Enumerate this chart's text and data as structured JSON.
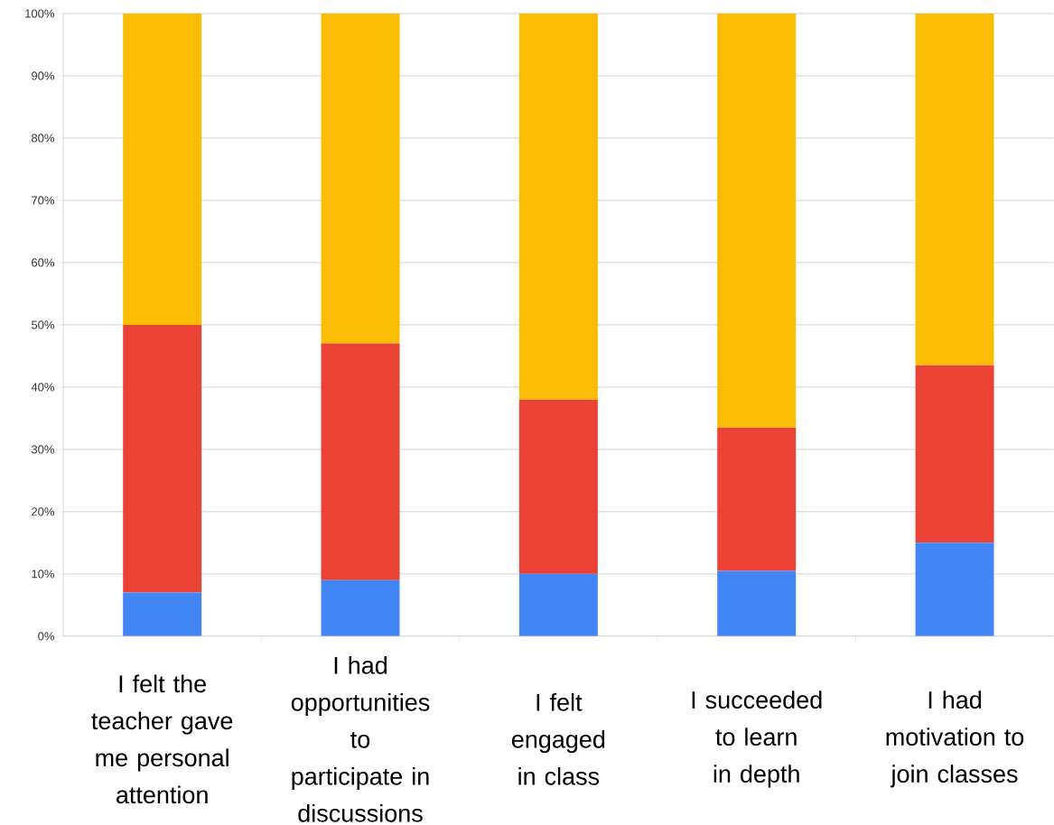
{
  "chart_data": {
    "type": "bar",
    "stacked": true,
    "categories": [
      "I felt the teacher gave me personal attention",
      "I had opportunities to participate in discussions",
      "I felt engaged in class",
      "I succeeded to learn in depth",
      "I had motivation to join classes"
    ],
    "series": [
      {
        "color": "#4285f4",
        "values": [
          7,
          9,
          10,
          10.5,
          15
        ]
      },
      {
        "color": "#ea4335",
        "values": [
          43,
          38,
          28,
          23,
          28.5
        ]
      },
      {
        "color": "#fbbc04",
        "values": [
          50,
          53,
          62,
          66.5,
          56.5
        ]
      }
    ],
    "ylim": [
      0,
      100
    ],
    "yticks": [
      {
        "value": 0,
        "label": "0%"
      },
      {
        "value": 10,
        "label": "10%"
      },
      {
        "value": 20,
        "label": "20%"
      },
      {
        "value": 30,
        "label": "30%"
      },
      {
        "value": 40,
        "label": "40%"
      },
      {
        "value": 50,
        "label": "50%"
      },
      {
        "value": 60,
        "label": "60%"
      },
      {
        "value": 70,
        "label": "70%"
      },
      {
        "value": 80,
        "label": "80%"
      },
      {
        "value": 90,
        "label": "90%"
      },
      {
        "value": 100,
        "label": "100%"
      }
    ],
    "grid": "y"
  }
}
